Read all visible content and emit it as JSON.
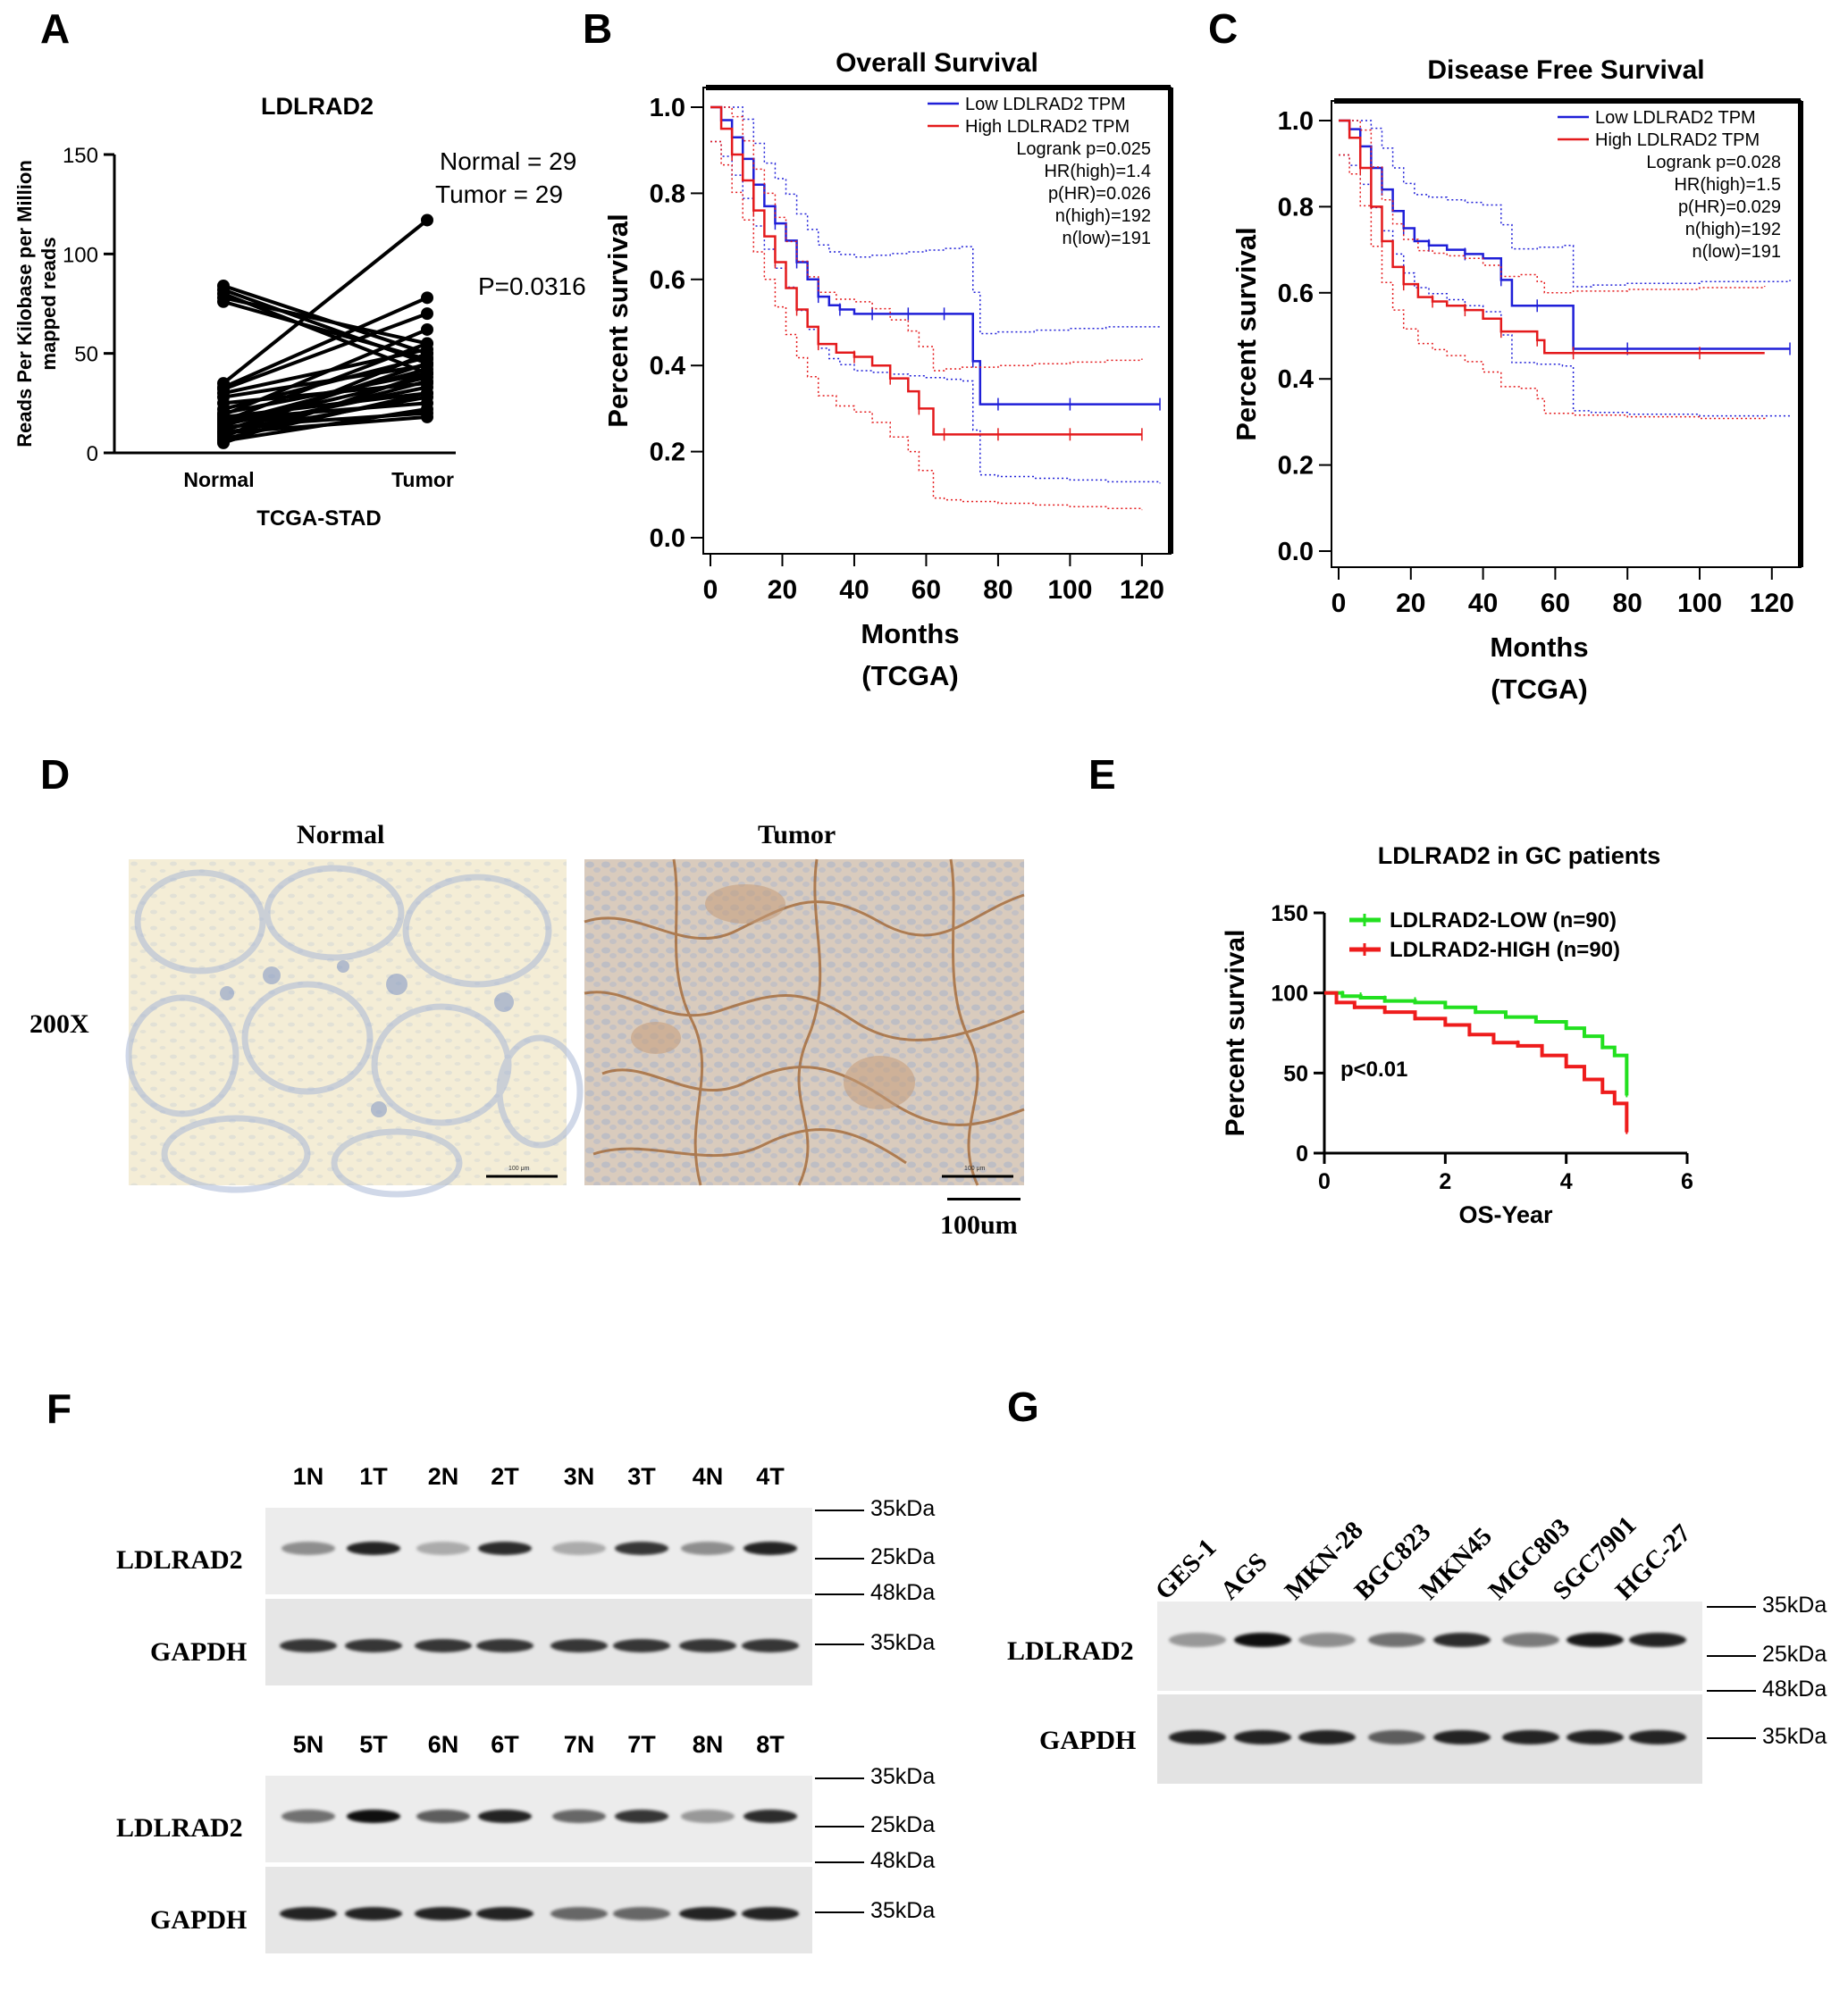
{
  "panels": {
    "A": "A",
    "B": "B",
    "C": "C",
    "D": "D",
    "E": "E",
    "F": "F",
    "G": "G"
  },
  "chart_data": [
    {
      "panel": "A",
      "type": "line",
      "title": "LDLRAD2",
      "ylabel": "Reads Per Kilobase per Million mapped reads",
      "xlabel": "TCGA-STAD",
      "categories": [
        "Normal",
        "Tumor"
      ],
      "ylim": [
        0,
        150
      ],
      "yticks": [
        0,
        50,
        100,
        150
      ],
      "annotations": [
        "Normal = 29",
        "Tumor = 29",
        "P=0.0316"
      ],
      "pairs": [
        [
          84,
          50
        ],
        [
          82,
          45
        ],
        [
          80,
          40
        ],
        [
          78,
          55
        ],
        [
          76,
          47
        ],
        [
          35,
          117
        ],
        [
          33,
          78
        ],
        [
          32,
          70
        ],
        [
          30,
          52
        ],
        [
          28,
          44
        ],
        [
          25,
          35
        ],
        [
          22,
          48
        ],
        [
          20,
          40
        ],
        [
          19,
          62
        ],
        [
          18,
          30
        ],
        [
          17,
          25
        ],
        [
          16,
          55
        ],
        [
          15,
          42
        ],
        [
          14,
          38
        ],
        [
          13,
          20
        ],
        [
          12,
          33
        ],
        [
          11,
          45
        ],
        [
          10,
          28
        ],
        [
          10,
          18
        ],
        [
          9,
          36
        ],
        [
          8,
          50
        ],
        [
          7,
          30
        ],
        [
          6,
          22
        ],
        [
          5,
          40
        ]
      ]
    },
    {
      "panel": "B",
      "type": "line",
      "title": "Overall Survival",
      "xlabel": "Months",
      "xlabel2": "(TCGA)",
      "ylabel": "Percent survival",
      "xlim": [
        0,
        125
      ],
      "ylim": [
        0,
        1.0
      ],
      "xticks": [
        0,
        20,
        40,
        60,
        80,
        100,
        120
      ],
      "yticks": [
        "0.0",
        "0.2",
        "0.4",
        "0.6",
        "0.8",
        "1.0"
      ],
      "legend": [
        "Low LDLRAD2 TPM",
        "High LDLRAD2 TPM",
        "Logrank p=0.025",
        "HR(high)=1.4",
        "p(HR)=0.026",
        "n(high)=192",
        "n(low)=191"
      ],
      "colors": {
        "low": "#1f1fd8",
        "high": "#e41a1c"
      },
      "series": [
        {
          "name": "Low LDLRAD2 TPM",
          "x": [
            0,
            3,
            6,
            9,
            12,
            15,
            18,
            21,
            24,
            27,
            30,
            33,
            36,
            40,
            45,
            50,
            55,
            60,
            65,
            70,
            73,
            75,
            80,
            90,
            100,
            110,
            125
          ],
          "y": [
            1.0,
            0.97,
            0.93,
            0.88,
            0.82,
            0.77,
            0.73,
            0.69,
            0.64,
            0.6,
            0.56,
            0.54,
            0.53,
            0.52,
            0.52,
            0.52,
            0.52,
            0.52,
            0.52,
            0.52,
            0.41,
            0.31,
            0.31,
            0.31,
            0.31,
            0.31,
            0.31
          ]
        },
        {
          "name": "High LDLRAD2 TPM",
          "x": [
            0,
            3,
            6,
            9,
            12,
            15,
            18,
            21,
            24,
            27,
            30,
            35,
            40,
            45,
            50,
            55,
            58,
            62,
            65,
            70,
            80,
            90,
            100,
            110,
            120
          ],
          "y": [
            1.0,
            0.95,
            0.89,
            0.83,
            0.76,
            0.7,
            0.64,
            0.58,
            0.53,
            0.49,
            0.45,
            0.43,
            0.42,
            0.4,
            0.37,
            0.34,
            0.3,
            0.24,
            0.24,
            0.24,
            0.24,
            0.24,
            0.24,
            0.24,
            0.24
          ]
        }
      ]
    },
    {
      "panel": "C",
      "type": "line",
      "title": "Disease Free Survival",
      "xlabel": "Months",
      "xlabel2": "(TCGA)",
      "ylabel": "Percent survival",
      "xlim": [
        0,
        125
      ],
      "ylim": [
        0,
        1.0
      ],
      "xticks": [
        0,
        20,
        40,
        60,
        80,
        100,
        120
      ],
      "yticks": [
        "0.0",
        "0.2",
        "0.4",
        "0.6",
        "0.8",
        "1.0"
      ],
      "legend": [
        "Low LDLRAD2 TPM",
        "High LDLRAD2 TPM",
        "Logrank p=0.028",
        "HR(high)=1.5",
        "p(HR)=0.029",
        "n(high)=192",
        "n(low)=191"
      ],
      "colors": {
        "low": "#1f1fd8",
        "high": "#e41a1c"
      },
      "series": [
        {
          "name": "Low LDLRAD2 TPM",
          "x": [
            0,
            3,
            6,
            9,
            12,
            15,
            18,
            21,
            25,
            30,
            35,
            40,
            45,
            48,
            55,
            62,
            65,
            70,
            80,
            100,
            125
          ],
          "y": [
            1.0,
            0.98,
            0.94,
            0.89,
            0.84,
            0.79,
            0.75,
            0.72,
            0.71,
            0.7,
            0.69,
            0.68,
            0.63,
            0.57,
            0.57,
            0.57,
            0.47,
            0.47,
            0.47,
            0.47,
            0.47
          ]
        },
        {
          "name": "High LDLRAD2 TPM",
          "x": [
            0,
            3,
            6,
            9,
            12,
            15,
            18,
            22,
            26,
            30,
            35,
            40,
            45,
            50,
            55,
            57,
            65,
            80,
            100,
            118
          ],
          "y": [
            1.0,
            0.96,
            0.89,
            0.8,
            0.72,
            0.66,
            0.62,
            0.59,
            0.58,
            0.57,
            0.56,
            0.54,
            0.51,
            0.51,
            0.49,
            0.46,
            0.46,
            0.46,
            0.46,
            0.46
          ]
        }
      ]
    },
    {
      "panel": "E",
      "type": "line",
      "title": "LDLRAD2 in GC patients",
      "xlabel": "OS-Year",
      "ylabel": "Percent survival",
      "xlim": [
        0,
        6
      ],
      "ylim": [
        0,
        150
      ],
      "xticks": [
        0,
        2,
        4,
        6
      ],
      "yticks": [
        0,
        50,
        100,
        150
      ],
      "annotation": "p<0.01",
      "colors": {
        "low": "#22e01f",
        "high": "#ee1c1c"
      },
      "series": [
        {
          "name": "LDLRAD2-LOW (n=90)",
          "x": [
            0,
            0.3,
            0.6,
            1.0,
            1.5,
            2.0,
            2.5,
            3.0,
            3.5,
            4.0,
            4.3,
            4.6,
            4.8,
            5.0,
            5.0
          ],
          "y": [
            100,
            98,
            97,
            95,
            94,
            91,
            88,
            85,
            82,
            78,
            73,
            66,
            61,
            57,
            36
          ]
        },
        {
          "name": "LDLRAD2-HIGH (n=90)",
          "x": [
            0,
            0.2,
            0.5,
            1.0,
            1.5,
            2.0,
            2.4,
            2.8,
            3.2,
            3.6,
            4.0,
            4.3,
            4.6,
            4.8,
            5.0,
            5.0
          ],
          "y": [
            100,
            94,
            91,
            88,
            84,
            80,
            74,
            69,
            67,
            61,
            54,
            46,
            38,
            31,
            26,
            13
          ]
        }
      ]
    }
  ],
  "panel_d": {
    "col_normal": "Normal",
    "col_tumor": "Tumor",
    "row_label": "200X",
    "scale_bar": "100um",
    "micro_scale_text": "100 μm"
  },
  "panel_f": {
    "top_lanes": [
      "1N",
      "1T",
      "2N",
      "2T",
      "3N",
      "3T",
      "4N",
      "4T"
    ],
    "bottom_lanes": [
      "5N",
      "5T",
      "6N",
      "6T",
      "7N",
      "7T",
      "8N",
      "8T"
    ],
    "row1": "LDLRAD2",
    "row2": "GAPDH",
    "markers": {
      "m35": "35kDa",
      "m25": "25kDa",
      "m48": "48kDa"
    },
    "band_levels_top": [
      0.35,
      0.9,
      0.2,
      0.85,
      0.2,
      0.8,
      0.35,
      0.9
    ],
    "band_levels_bottom": [
      0.5,
      1.0,
      0.6,
      0.9,
      0.55,
      0.8,
      0.3,
      0.85
    ]
  },
  "panel_g": {
    "lanes": [
      "GES-1",
      "AGS",
      "MKN-28",
      "BGC823",
      "MKN45",
      "MGC803",
      "SGC7901",
      "HGC-27"
    ],
    "row1": "LDLRAD2",
    "row2": "GAPDH",
    "markers": {
      "m35": "35kDa",
      "m25": "25kDa",
      "m48": "48kDa"
    },
    "band_levels": [
      0.3,
      1.0,
      0.35,
      0.5,
      0.85,
      0.45,
      0.95,
      0.9
    ]
  }
}
